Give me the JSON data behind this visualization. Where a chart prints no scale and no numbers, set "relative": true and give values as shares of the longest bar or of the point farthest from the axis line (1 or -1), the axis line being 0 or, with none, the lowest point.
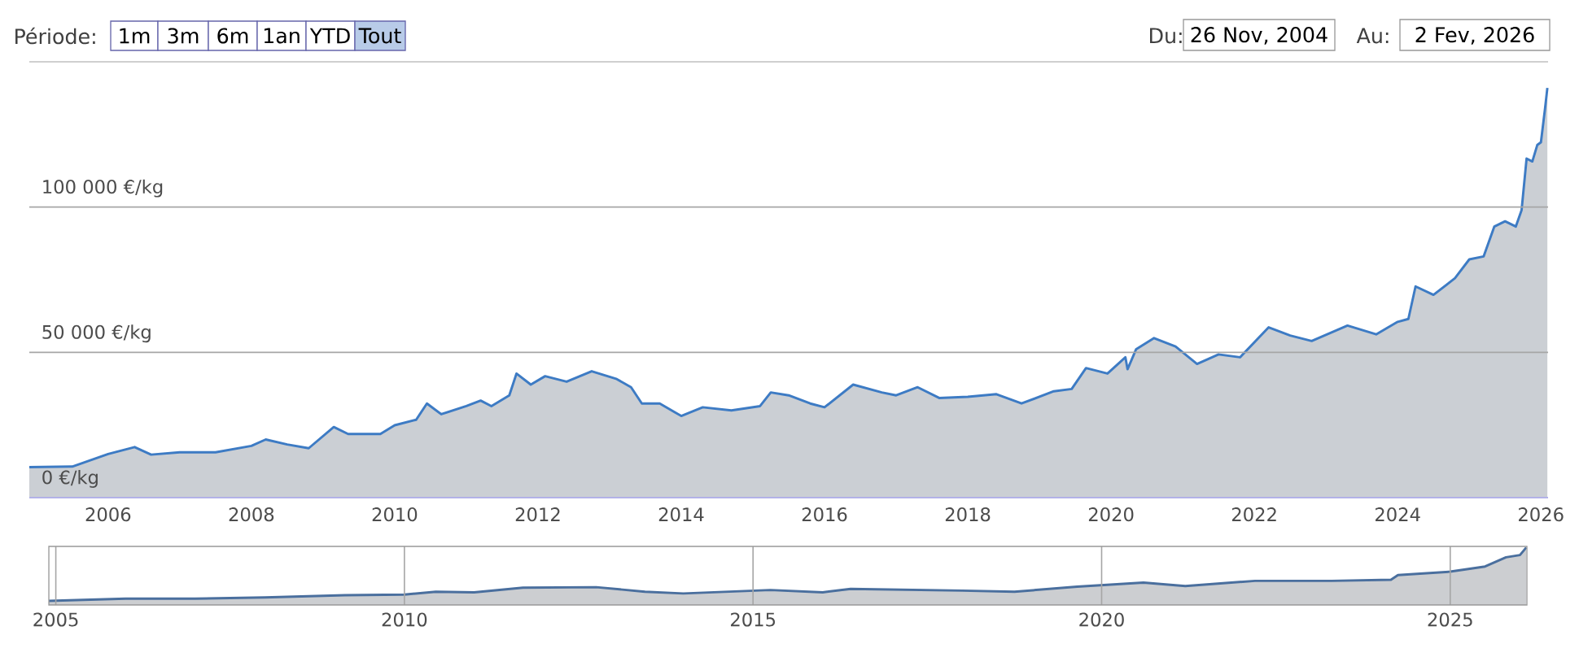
{
  "chart_data": [
    {
      "type": "area",
      "color": "#3d7bc4",
      "grid": "y",
      "x": [
        2004.9,
        2005.5,
        2006.0,
        2006.37,
        2006.6,
        2007.0,
        2007.5,
        2008.0,
        2008.2,
        2008.5,
        2008.8,
        2009.15,
        2009.35,
        2009.8,
        2010.0,
        2010.3,
        2010.45,
        2010.65,
        2011.0,
        2011.2,
        2011.35,
        2011.6,
        2011.7,
        2011.9,
        2012.1,
        2012.4,
        2012.75,
        2013.1,
        2013.3,
        2013.45,
        2013.7,
        2014.0,
        2014.3,
        2014.7,
        2015.1,
        2015.25,
        2015.5,
        2015.8,
        2016.0,
        2016.4,
        2016.8,
        2017.0,
        2017.3,
        2017.6,
        2018.0,
        2018.4,
        2018.75,
        2019.2,
        2019.45,
        2019.65,
        2019.95,
        2020.2,
        2020.23,
        2020.35,
        2020.6,
        2020.9,
        2021.2,
        2021.5,
        2021.8,
        2022.2,
        2022.5,
        2022.8,
        2023.3,
        2023.7,
        2024.0,
        2024.15,
        2024.25,
        2024.5,
        2024.8,
        2025.0,
        2025.2,
        2025.35,
        2025.5,
        2025.65,
        2025.73,
        2025.8,
        2025.88,
        2025.95,
        2026.0,
        2026.06,
        2026.09
      ],
      "values": [
        10500,
        10700,
        15000,
        17400,
        14800,
        15600,
        15600,
        17800,
        20000,
        18300,
        17000,
        24300,
        21900,
        21900,
        24900,
        26800,
        32400,
        28700,
        31500,
        33400,
        31500,
        35200,
        42700,
        38900,
        41800,
        39900,
        43500,
        40800,
        38000,
        32400,
        32400,
        28100,
        31100,
        30000,
        31500,
        36200,
        35200,
        32400,
        31100,
        38900,
        36200,
        35200,
        38000,
        34300,
        34700,
        35600,
        32400,
        36600,
        37400,
        44600,
        42700,
        48300,
        44200,
        51100,
        54900,
        52000,
        46000,
        49300,
        48300,
        58600,
        55800,
        53900,
        59200,
        56200,
        60500,
        61500,
        72700,
        69800,
        75500,
        82000,
        83000,
        93300,
        95100,
        93300,
        98900,
        116700,
        115700,
        121400,
        122300,
        134400,
        141000
      ],
      "xlim": [
        2004.9,
        2026.1
      ],
      "xticks": [
        2006,
        2008,
        2010,
        2012,
        2014,
        2016,
        2018,
        2020,
        2022,
        2024,
        2026
      ],
      "ylim": [
        0,
        150000
      ],
      "yticks": [
        {
          "value": 0,
          "label": "0 €/kg"
        },
        {
          "value": 50000,
          "label": "50 000 €/kg"
        },
        {
          "value": 100000,
          "label": "100 000 €/kg"
        }
      ],
      "annotations": [
        "Période:",
        "1m",
        "3m",
        "6m",
        "1an",
        "YTD",
        "Tout",
        "Du:",
        "26 Nov, 2004",
        "Au:",
        "2 Fev, 2026"
      ]
    },
    {
      "type": "area",
      "color": "#4a6f9e",
      "grid": "x",
      "relative": true,
      "x": [
        2004.9,
        2006.0,
        2007.0,
        2008.0,
        2009.15,
        2010.0,
        2010.45,
        2011.0,
        2011.7,
        2012.75,
        2013.45,
        2014.0,
        2015.25,
        2016.0,
        2016.4,
        2018.0,
        2018.75,
        2019.65,
        2020.6,
        2021.2,
        2022.2,
        2023.3,
        2024.15,
        2024.25,
        2025.0,
        2025.5,
        2025.8,
        2026.0,
        2026.09
      ],
      "values": [
        0.07,
        0.11,
        0.11,
        0.13,
        0.17,
        0.18,
        0.23,
        0.22,
        0.3,
        0.31,
        0.23,
        0.2,
        0.26,
        0.22,
        0.28,
        0.25,
        0.23,
        0.32,
        0.39,
        0.33,
        0.42,
        0.42,
        0.44,
        0.52,
        0.58,
        0.67,
        0.83,
        0.87,
        1.0
      ],
      "xlim": [
        2004.9,
        2026.1
      ],
      "xticks": [
        2005,
        2010,
        2015,
        2020,
        2025
      ]
    }
  ]
}
